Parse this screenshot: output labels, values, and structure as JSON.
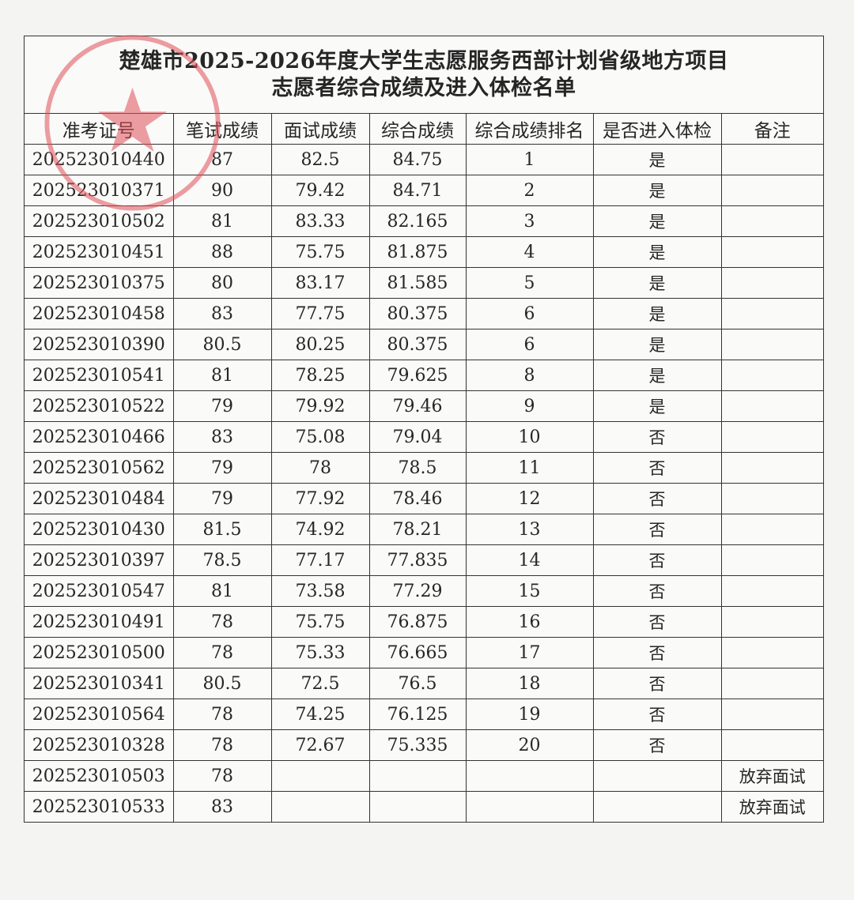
{
  "document": {
    "title_line1": "楚雄市2025-2026年度大学生志愿服务西部计划省级地方项目",
    "title_line2": "志愿者综合成绩及进入体检名单",
    "stamp_color": "#e0505a",
    "columns": [
      "准考证号",
      "笔试成绩",
      "面试成绩",
      "综合成绩",
      "综合成绩排名",
      "是否进入体检",
      "备注"
    ],
    "rows": [
      [
        "202523010440",
        "87",
        "82.5",
        "84.75",
        "1",
        "是",
        ""
      ],
      [
        "202523010371",
        "90",
        "79.42",
        "84.71",
        "2",
        "是",
        ""
      ],
      [
        "202523010502",
        "81",
        "83.33",
        "82.165",
        "3",
        "是",
        ""
      ],
      [
        "202523010451",
        "88",
        "75.75",
        "81.875",
        "4",
        "是",
        ""
      ],
      [
        "202523010375",
        "80",
        "83.17",
        "81.585",
        "5",
        "是",
        ""
      ],
      [
        "202523010458",
        "83",
        "77.75",
        "80.375",
        "6",
        "是",
        ""
      ],
      [
        "202523010390",
        "80.5",
        "80.25",
        "80.375",
        "6",
        "是",
        ""
      ],
      [
        "202523010541",
        "81",
        "78.25",
        "79.625",
        "8",
        "是",
        ""
      ],
      [
        "202523010522",
        "79",
        "79.92",
        "79.46",
        "9",
        "是",
        ""
      ],
      [
        "202523010466",
        "83",
        "75.08",
        "79.04",
        "10",
        "否",
        ""
      ],
      [
        "202523010562",
        "79",
        "78",
        "78.5",
        "11",
        "否",
        ""
      ],
      [
        "202523010484",
        "79",
        "77.92",
        "78.46",
        "12",
        "否",
        ""
      ],
      [
        "202523010430",
        "81.5",
        "74.92",
        "78.21",
        "13",
        "否",
        ""
      ],
      [
        "202523010397",
        "78.5",
        "77.17",
        "77.835",
        "14",
        "否",
        ""
      ],
      [
        "202523010547",
        "81",
        "73.58",
        "77.29",
        "15",
        "否",
        ""
      ],
      [
        "202523010491",
        "78",
        "75.75",
        "76.875",
        "16",
        "否",
        ""
      ],
      [
        "202523010500",
        "78",
        "75.33",
        "76.665",
        "17",
        "否",
        ""
      ],
      [
        "202523010341",
        "80.5",
        "72.5",
        "76.5",
        "18",
        "否",
        ""
      ],
      [
        "202523010564",
        "78",
        "74.25",
        "76.125",
        "19",
        "否",
        ""
      ],
      [
        "202523010328",
        "78",
        "72.67",
        "75.335",
        "20",
        "否",
        ""
      ],
      [
        "202523010503",
        "78",
        "",
        "",
        "",
        "",
        "放弃面试"
      ],
      [
        "202523010533",
        "83",
        "",
        "",
        "",
        "",
        "放弃面试"
      ]
    ]
  }
}
